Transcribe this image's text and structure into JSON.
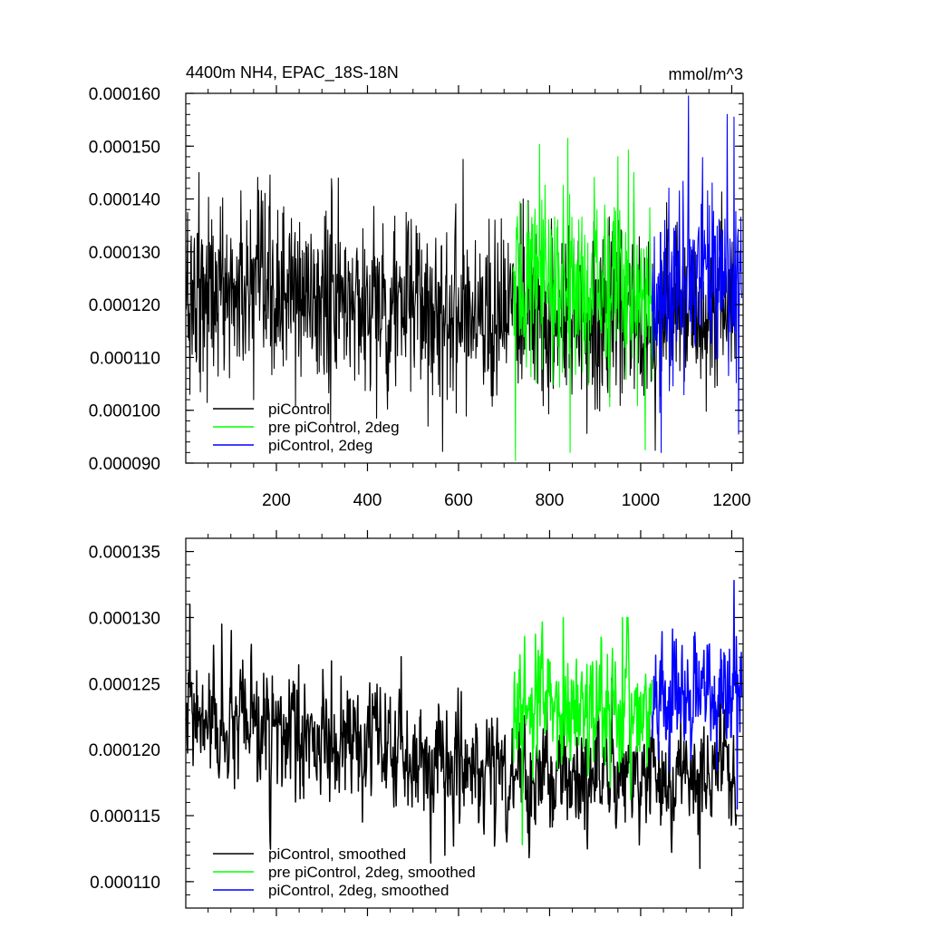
{
  "chart_data": [
    {
      "type": "line",
      "title": "4400m NH4, EPAC_18S-18N",
      "units_label": "mmol/m^3",
      "xlim": [
        1,
        1225
      ],
      "ylim": [
        9e-05,
        0.00016
      ],
      "xticks": [
        200,
        400,
        600,
        800,
        1000,
        1200
      ],
      "xtick_labels": [
        "200",
        "400",
        "600",
        "800",
        "1000",
        "1200"
      ],
      "yticks": [
        9e-05,
        0.0001,
        0.00011,
        0.00012,
        0.00013,
        0.00014,
        0.00015,
        0.00016
      ],
      "ytick_labels": [
        "0.000090",
        "0.000100",
        "0.000110",
        "0.000120",
        "0.000130",
        "0.000140",
        "0.000150",
        "0.000160"
      ],
      "grid": false,
      "legend_position": "bottom-left",
      "series": [
        {
          "name": "piControl",
          "color": "#000000",
          "x_range": [
            1,
            1210
          ],
          "summary": {
            "typical_mean_early": 0.000123,
            "typical_mean_late": 0.000118,
            "range_min": 9.22e-05,
            "range_max": 0.0001475
          },
          "notable_points": [
            [
              10,
              0.000103
            ],
            [
              30,
              0.000145
            ],
            [
              150,
              0.000102
            ],
            [
              420,
              9.85e-05
            ],
            [
              565,
              9.22e-05
            ],
            [
              610,
              0.0001475
            ],
            [
              680,
              0.000136
            ]
          ]
        },
        {
          "name": "pre piControl, 2deg",
          "color": "#00ff00",
          "x_range": [
            720,
            1025
          ],
          "summary": {
            "typical_mean": 0.000124,
            "range_min": 9.05e-05,
            "range_max": 0.0001515
          },
          "notable_points": [
            [
              725,
              9.05e-05
            ],
            [
              840,
              0.0001515
            ],
            [
              845,
              9.2e-05
            ],
            [
              950,
              0.000148
            ],
            [
              985,
              0.000145
            ],
            [
              1010,
              9.25e-05
            ]
          ]
        },
        {
          "name": "piControl, 2deg",
          "color": "#0000ff",
          "x_range": [
            1025,
            1222
          ],
          "summary": {
            "typical_mean": 0.000125,
            "range_min": 9.2e-05,
            "range_max": 0.0001595
          },
          "notable_points": [
            [
              1045,
              9.2e-05
            ],
            [
              1105,
              0.0001595
            ],
            [
              1190,
              0.000156
            ],
            [
              1205,
              0.0001555
            ],
            [
              1215,
              9.55e-05
            ]
          ]
        }
      ]
    },
    {
      "type": "line",
      "title": "",
      "xlim": [
        1,
        1225
      ],
      "ylim": [
        0.000108,
        0.000136
      ],
      "xticks": [
        200,
        400,
        600,
        800,
        1000,
        1200
      ],
      "xtick_labels": [
        "",
        "",
        "",
        "",
        "",
        ""
      ],
      "yticks": [
        0.00011,
        0.000115,
        0.00012,
        0.000125,
        0.00013,
        0.000135
      ],
      "ytick_labels": [
        "0.000110",
        "0.000115",
        "0.000120",
        "0.000125",
        "0.000130",
        "0.000135"
      ],
      "grid": false,
      "legend_position": "bottom-left",
      "series": [
        {
          "name": "piControl, smoothed",
          "color": "#000000",
          "x_range": [
            1,
            1210
          ],
          "summary": {
            "typical_mean_early": 0.000122,
            "typical_mean_late": 0.000118,
            "range_min": 0.000111,
            "range_max": 0.000131
          },
          "notable_points": [
            [
              10,
              0.000131
            ],
            [
              80,
              0.0001295
            ],
            [
              570,
              0.000112
            ],
            [
              1130,
              0.000111
            ]
          ]
        },
        {
          "name": "pre piControl, 2deg, smoothed",
          "color": "#00ff00",
          "x_range": [
            720,
            1025
          ],
          "summary": {
            "typical_mean": 0.000123,
            "range_min": 0.0001128,
            "range_max": 0.00013
          },
          "notable_points": [
            [
              740,
              0.0001128
            ],
            [
              830,
              0.00013
            ],
            [
              960,
              0.00013
            ]
          ]
        },
        {
          "name": "piControl, 2deg, smoothed",
          "color": "#0000ff",
          "x_range": [
            1025,
            1222
          ],
          "summary": {
            "typical_mean": 0.000124,
            "range_min": 0.000115,
            "range_max": 0.0001328
          },
          "notable_points": [
            [
              1205,
              0.0001328
            ],
            [
              1212,
              0.0001155
            ]
          ]
        }
      ]
    }
  ]
}
